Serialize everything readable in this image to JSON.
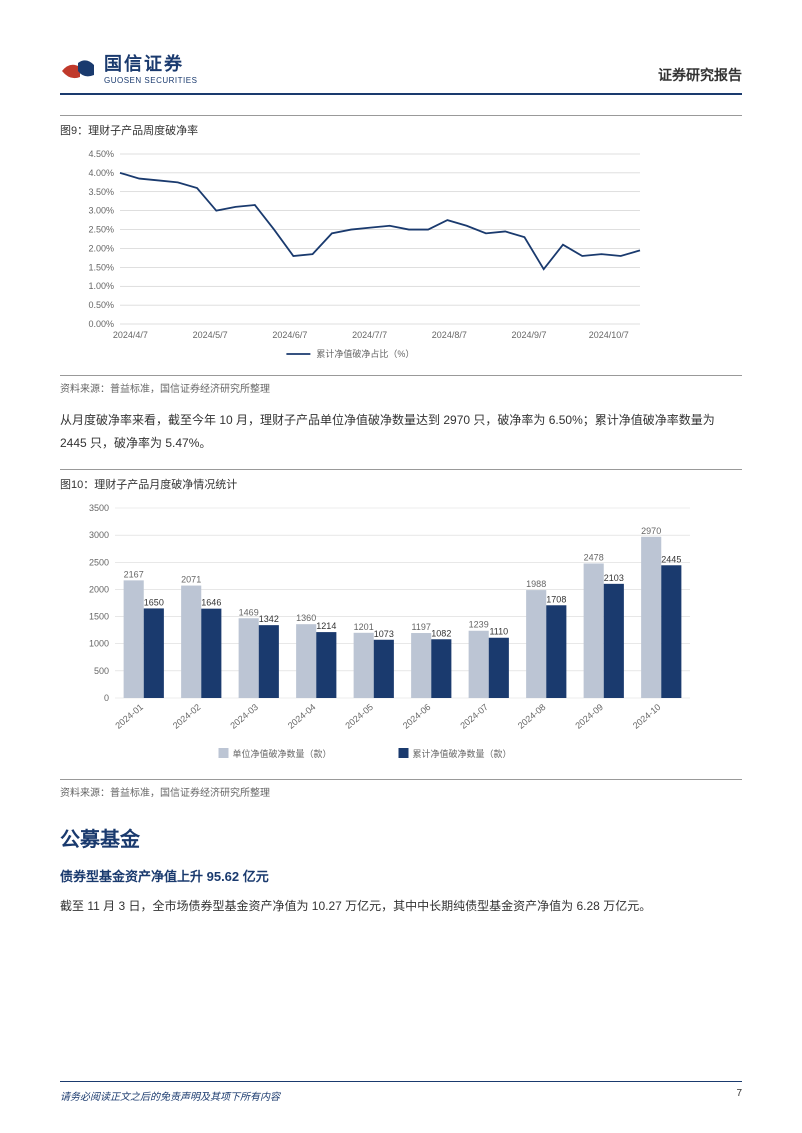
{
  "header": {
    "logo_cn": "国信证券",
    "logo_en": "GUOSEN SECURITIES",
    "report_title": "证券研究报告"
  },
  "fig9": {
    "title": "图9：理财子产品周度破净率",
    "source": "资料来源：普益标准，国信证券经济研究所整理",
    "type": "line",
    "legend": "累计净值破净占比（%）",
    "x_labels": [
      "2024/4/7",
      "2024/5/7",
      "2024/6/7",
      "2024/7/7",
      "2024/8/7",
      "2024/9/7",
      "2024/10/7"
    ],
    "y_labels": [
      "0.00%",
      "0.50%",
      "1.00%",
      "1.50%",
      "2.00%",
      "2.50%",
      "3.00%",
      "3.50%",
      "4.00%",
      "4.50%"
    ],
    "ylim": [
      0,
      4.5
    ],
    "ytick_step": 0.5,
    "values": [
      4.0,
      3.85,
      3.8,
      3.75,
      3.6,
      3.0,
      3.1,
      3.15,
      2.5,
      1.8,
      1.85,
      2.4,
      2.5,
      2.55,
      2.6,
      2.5,
      2.5,
      2.75,
      2.6,
      2.4,
      2.45,
      2.3,
      1.45,
      2.1,
      1.8,
      1.85,
      1.8,
      1.95
    ],
    "line_color": "#1a3a6e",
    "line_width": 1.8,
    "grid_color": "#bfbfbf",
    "background_color": "#ffffff",
    "axis_font_size": 9
  },
  "para1": "从月度破净率来看，截至今年 10 月，理财子产品单位净值破净数量达到 2970 只，破净率为 6.50%；累计净值破净率数量为 2445 只，破净率为 5.47%。",
  "fig10": {
    "title": "图10：理财子产品月度破净情况统计",
    "source": "资料来源：普益标准，国信证券经济研究所整理",
    "type": "bar",
    "x_labels": [
      "2024-01",
      "2024-02",
      "2024-03",
      "2024-04",
      "2024-05",
      "2024-06",
      "2024-07",
      "2024-08",
      "2024-09",
      "2024-10"
    ],
    "y_labels": [
      "0",
      "500",
      "1000",
      "1500",
      "2000",
      "2500",
      "3000",
      "3500"
    ],
    "ylim": [
      0,
      3500
    ],
    "ytick_step": 500,
    "series": [
      {
        "name": "单位净值破净数量（款）",
        "color": "#bcc5d4",
        "values": [
          2167,
          2071,
          1469,
          1360,
          1201,
          1197,
          1239,
          1988,
          2478,
          2970
        ]
      },
      {
        "name": "累计净值破净数量（款）",
        "color": "#1a3a6e",
        "values": [
          1650,
          1646,
          1342,
          1214,
          1073,
          1082,
          1110,
          1708,
          2103,
          2445
        ]
      }
    ],
    "bar_width": 0.35,
    "grid_color": "#d9d9d9",
    "background_color": "#ffffff",
    "axis_font_size": 9,
    "label_font_size": 9
  },
  "section": {
    "h1": "公募基金",
    "h2": "债券型基金资产净值上升 95.62 亿元",
    "body": "截至 11 月 3 日，全市场债券型基金资产净值为 10.27 万亿元，其中中长期纯债型基金资产净值为 6.28 万亿元。"
  },
  "footer": {
    "disclaimer": "请务必阅读正文之后的免责声明及其项下所有内容",
    "page": "7"
  }
}
